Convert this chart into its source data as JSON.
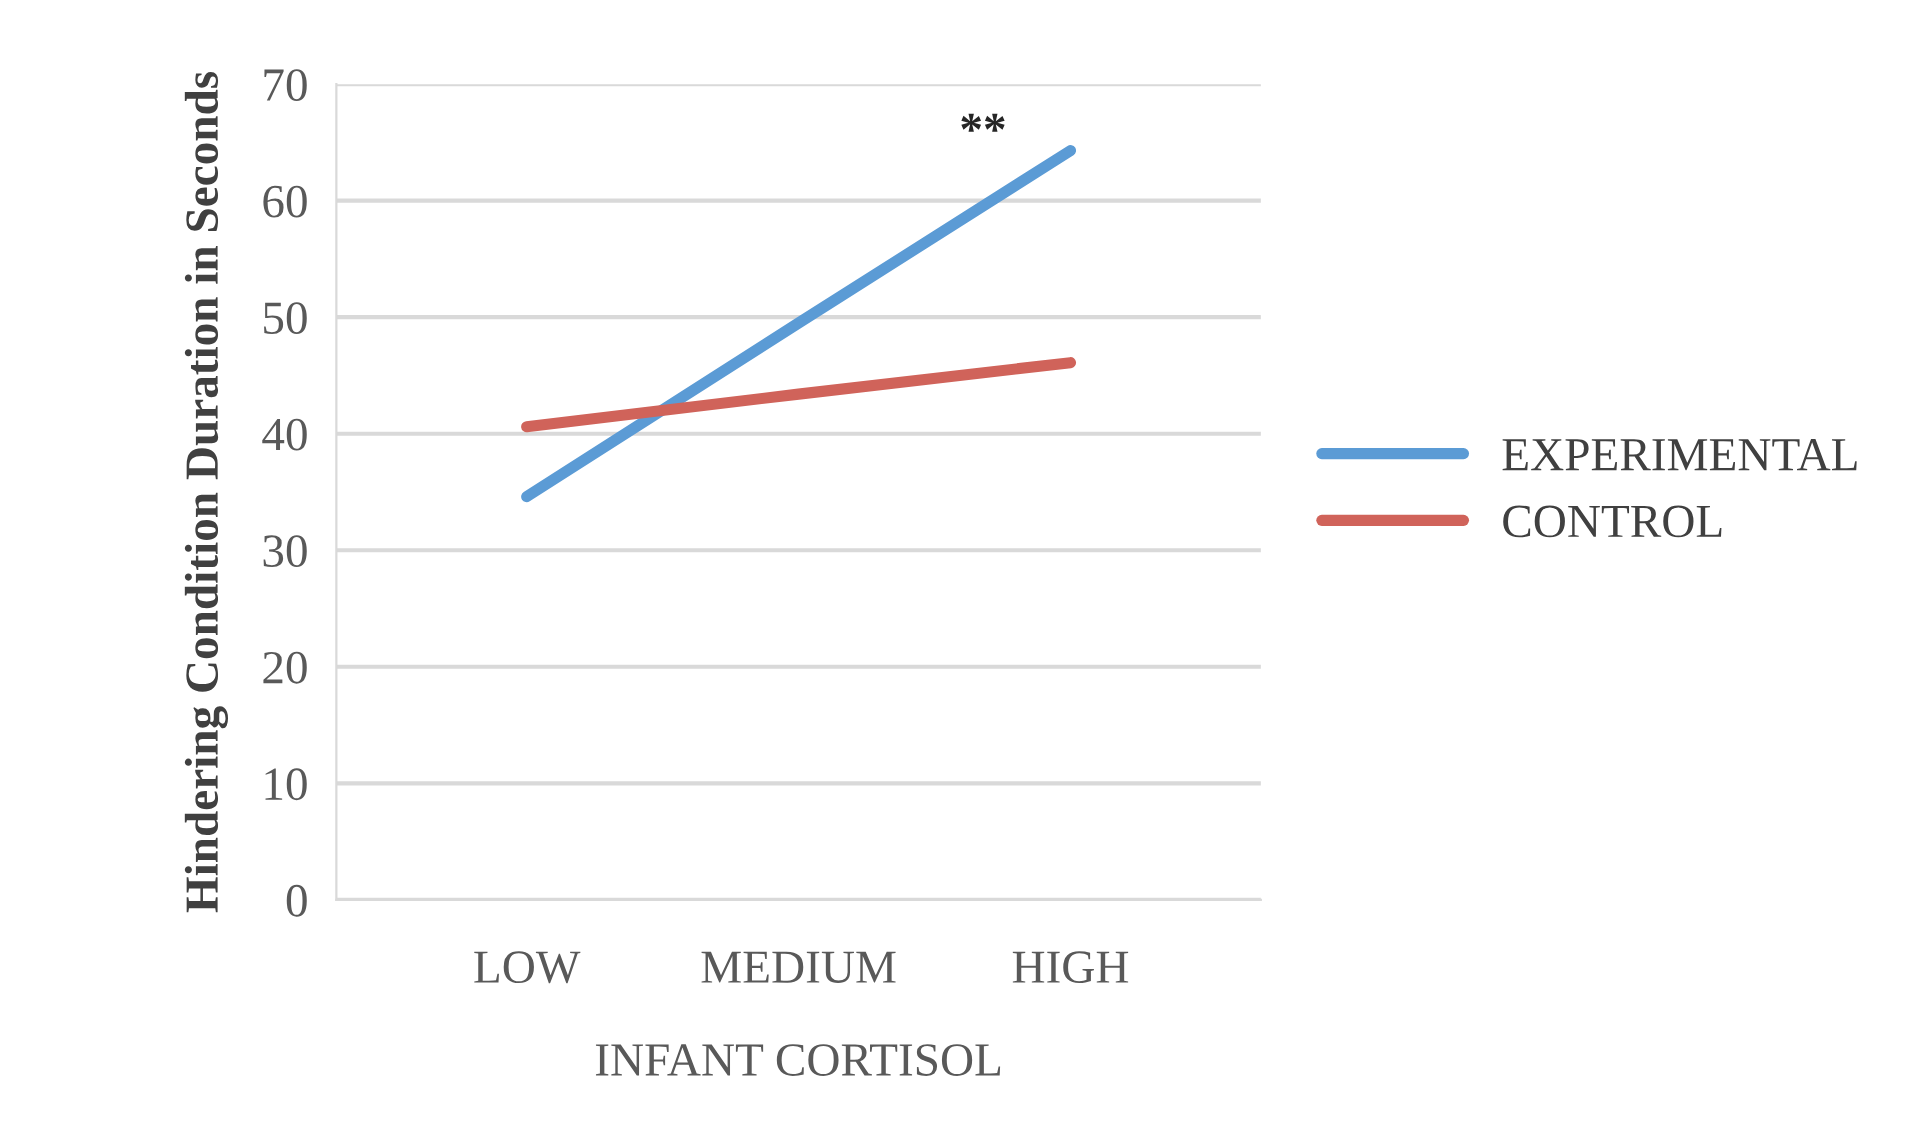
{
  "chart_data": {
    "type": "line",
    "xlabel": "INFANT CORTISOL",
    "ylabel": "Hindering Condition Duration in Seconds",
    "categories": [
      "LOW",
      "MEDIUM",
      "HIGH"
    ],
    "series": [
      {
        "name": "EXPERIMENTAL",
        "color": "#5b9bd5",
        "values": [
          34.6,
          49.5,
          64.3
        ]
      },
      {
        "name": "CONTROL",
        "color": "#d0635a",
        "values": [
          40.6,
          43.4,
          46.1
        ]
      }
    ],
    "ylim": [
      0,
      70
    ],
    "yticks": [
      0,
      10,
      20,
      30,
      40,
      50,
      60,
      70
    ],
    "grid": "y",
    "legend": "right",
    "marker": "none",
    "line_style": "solid",
    "annotations": [
      {
        "text": "**",
        "x": "HIGH",
        "y": 64.3
      }
    ]
  }
}
